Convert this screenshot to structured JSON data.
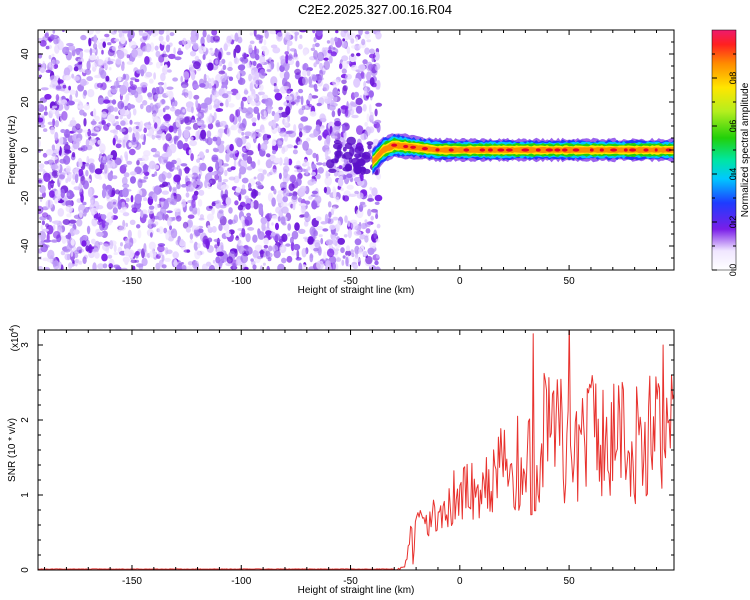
{
  "figure_title": "C2E2.2025.327.00.16.R04",
  "colors": {
    "snr_line": "#e8322e",
    "scatter_base": "#7a1ee8",
    "band_core": "#e4002b",
    "band_edge": "#00c8ff"
  },
  "chart_data": [
    {
      "type": "heatmap",
      "id": "spectrogram",
      "title": "",
      "xlabel": "Height of straight line (km)",
      "ylabel": "Frequency (Hz)",
      "xlim": [
        -193,
        98
      ],
      "ylim": [
        -50,
        50
      ],
      "x_ticks": [
        -150,
        -100,
        -50,
        0,
        50
      ],
      "x_tick_labels": [
        "-150",
        "-100",
        "-50",
        "0",
        "50"
      ],
      "y_ticks": [
        -40,
        -20,
        0,
        20,
        40
      ],
      "y_tick_labels": [
        "-40",
        "-20",
        "0",
        "20",
        "40"
      ],
      "noise_region_x": [
        -193,
        -37
      ],
      "signal_band": {
        "x": [
          -40,
          -35,
          -30,
          -20,
          -10,
          0,
          20,
          40,
          60,
          80,
          98
        ],
        "center_hz": [
          -5,
          0,
          2,
          1,
          0,
          0,
          0,
          0,
          0,
          0,
          0
        ],
        "half_width_hz": [
          3,
          3,
          3,
          2.5,
          2.5,
          2.5,
          2.5,
          2.5,
          2.5,
          2.5,
          2.5
        ]
      },
      "colorbar": {
        "label": "Normalized spectral amplitude",
        "range": [
          0,
          1
        ],
        "ticks": [
          0,
          0.2,
          0.4,
          0.6,
          0.8
        ],
        "tick_labels": [
          "0.0",
          "0.2",
          "0.4",
          "0.6",
          "0.8"
        ]
      }
    },
    {
      "type": "line",
      "id": "snr",
      "title": "",
      "xlabel": "Height of straight line (km)",
      "ylabel": "SNR (10 * v/v)",
      "y_scale_label": "(x10",
      "y_scale_exponent": "4",
      "xlim": [
        -193,
        98
      ],
      "ylim": [
        0,
        3.2
      ],
      "x_ticks": [
        -150,
        -100,
        -50,
        0,
        50
      ],
      "x_tick_labels": [
        "-150",
        "-100",
        "-50",
        "0",
        "50"
      ],
      "y_ticks": [
        0,
        1,
        2,
        3
      ],
      "y_tick_labels": [
        "0",
        "1",
        "2",
        "3"
      ],
      "series": [
        {
          "name": "SNR",
          "envelope_x": [
            -193,
            -30,
            -26,
            -24,
            -22,
            -20,
            -15,
            -10,
            -5,
            0,
            10,
            20,
            30,
            40,
            50,
            60,
            70,
            80,
            90,
            98
          ],
          "envelope_mean": [
            0.0,
            0.0,
            0.03,
            0.12,
            0.35,
            0.55,
            0.7,
            0.8,
            0.9,
            1.0,
            1.15,
            1.35,
            1.55,
            1.75,
            1.8,
            1.8,
            1.75,
            1.75,
            1.75,
            1.7
          ],
          "envelope_amplitude": [
            0.0,
            0.0,
            0.02,
            0.15,
            0.35,
            0.3,
            0.3,
            0.35,
            0.4,
            0.4,
            0.45,
            0.6,
            0.85,
            1.0,
            1.05,
            1.0,
            0.95,
            0.9,
            0.85,
            0.8
          ],
          "peaks": [
            {
              "x": 33.5,
              "y": 3.15
            },
            {
              "x": 50,
              "y": 3.35
            },
            {
              "x": 93,
              "y": 3.0
            },
            {
              "x": 97,
              "y": 2.6
            }
          ]
        }
      ]
    }
  ]
}
